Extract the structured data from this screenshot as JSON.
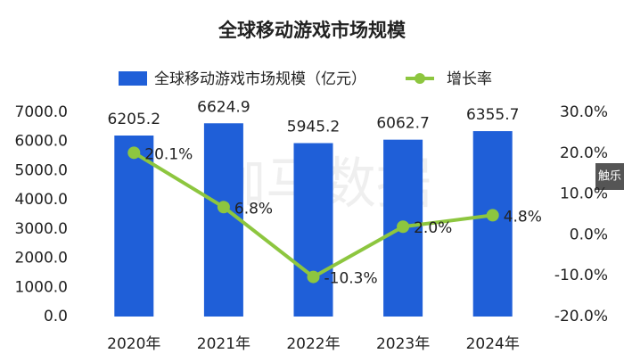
{
  "chart_data": {
    "type": "bar",
    "title": "全球移动游戏市场规模",
    "categories": [
      "2020年",
      "2021年",
      "2022年",
      "2023年",
      "2024年"
    ],
    "series": [
      {
        "name": "全球移动游戏市场规模（亿元）",
        "type": "bar",
        "color": "#1f5fd8",
        "values": [
          6205.2,
          6624.9,
          5945.2,
          6062.7,
          6355.7
        ]
      },
      {
        "name": "增长率",
        "type": "line",
        "axis": "y2",
        "color": "#8dc63f",
        "values": [
          20.1,
          6.8,
          -10.3,
          2.0,
          4.8
        ],
        "value_labels": [
          "20.1%",
          "6.8%",
          "-10.3%",
          "2.0%",
          "4.8%"
        ]
      }
    ],
    "ylim": [
      0,
      7000
    ],
    "yticks": [
      {
        "value": 0,
        "label": "0.0"
      },
      {
        "value": 1000,
        "label": "1000.0"
      },
      {
        "value": 2000,
        "label": "2000.0"
      },
      {
        "value": 3000,
        "label": "3000.0"
      },
      {
        "value": 4000,
        "label": "4000.0"
      },
      {
        "value": 5000,
        "label": "5000.0"
      },
      {
        "value": 6000,
        "label": "6000.0"
      },
      {
        "value": 7000,
        "label": "7000.0"
      }
    ],
    "y2lim": [
      -20,
      30
    ],
    "y2ticks": [
      {
        "value": -20,
        "label": "-20.0%"
      },
      {
        "value": -10,
        "label": "-10.0%"
      },
      {
        "value": 0,
        "label": "0.0%"
      },
      {
        "value": 10,
        "label": "10.0%"
      },
      {
        "value": 20,
        "label": "20.0%"
      },
      {
        "value": 30,
        "label": "30.0%"
      }
    ],
    "grid": false,
    "legend": "top",
    "watermark": "伽马数据",
    "badge": "触乐"
  }
}
